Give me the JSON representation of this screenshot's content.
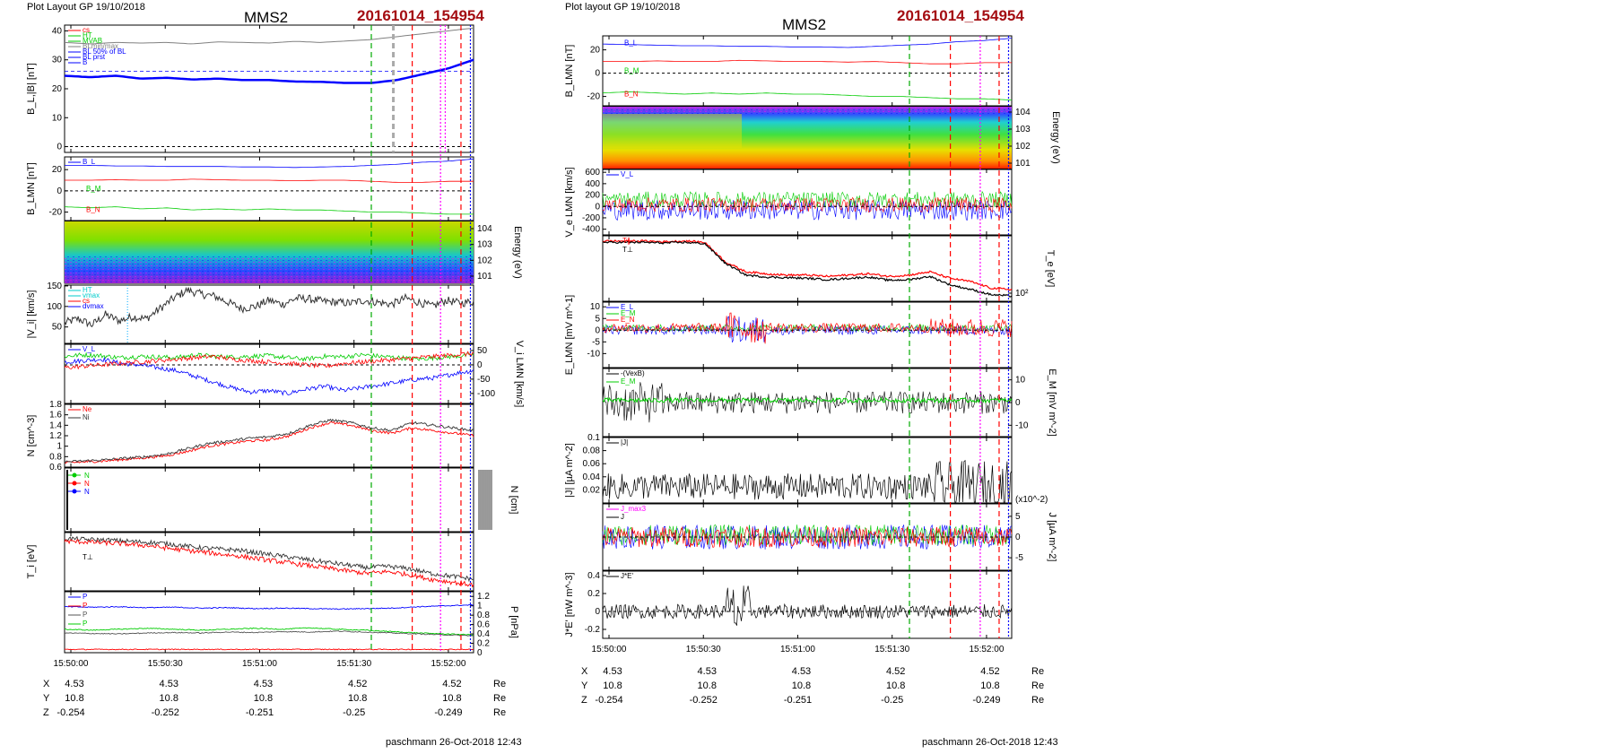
{
  "header": {
    "left_layout": "Plot Layout GP 19/10/2018",
    "right_layout": "Plot layout GP 19/10/2018",
    "spacecraft": "MMS2",
    "event": "20161014_154954"
  },
  "footer": {
    "left": "paschmann 26-Oct-2018 12:43",
    "right": "paschmann 26-Oct-2018 12:43"
  },
  "colors": {
    "blue": "#0000ff",
    "red": "#ff0000",
    "green": "#00cc00",
    "black": "#000000",
    "gray": "#808080",
    "magenta": "#ff00ff",
    "event_title": "#a40d12"
  },
  "time_axis": {
    "ticks": [
      "15:50:00",
      "15:50:30",
      "15:51:00",
      "15:51:30",
      "15:52:00"
    ],
    "tick_seconds": [
      0,
      30,
      60,
      90,
      120
    ],
    "range_seconds": [
      -2,
      128
    ]
  },
  "orbit": {
    "labels": [
      "X",
      "Y",
      "Z"
    ],
    "unit": "Re",
    "rows": [
      [
        "4.53",
        "4.53",
        "4.53",
        "4.52",
        "4.52"
      ],
      [
        "10.8",
        "10.8",
        "10.8",
        "10.8",
        "10.8"
      ],
      [
        "-0.254",
        "-0.252",
        "-0.251",
        "-0.25",
        "-0.249"
      ]
    ]
  },
  "chart_data": [
    {
      "type": "line",
      "id": "L1",
      "ylabel": "B_L,|B| [nT]",
      "ylim": [
        -2,
        42
      ],
      "yticks": [
        0,
        10,
        20,
        30,
        40
      ],
      "legend": [
        "cs",
        "HT",
        "MVAB",
        "BLmin/max",
        "BL 50% of BL",
        "BL prst",
        "B"
      ],
      "series": [
        {
          "name": "|B|",
          "color": "#808080",
          "values": [
            36,
            35.5,
            36,
            35.8,
            36,
            35.5,
            36.2,
            36,
            35.8,
            36.4,
            36,
            36.5,
            37,
            38,
            39,
            40,
            41
          ]
        },
        {
          "name": "B_L",
          "color": "#0000ff",
          "values": [
            24.5,
            24,
            24.5,
            23.5,
            23.8,
            23.2,
            23.5,
            23,
            23,
            22.5,
            22.4,
            22,
            22,
            23,
            25,
            27,
            30
          ]
        }
      ]
    },
    {
      "type": "line",
      "id": "L2",
      "ylabel": "B_LMN [nT]",
      "ylim": [
        -28,
        32
      ],
      "yticks": [
        -20,
        0,
        20
      ],
      "legend": [
        "B_L",
        "B_M",
        "B_N"
      ],
      "series": [
        {
          "name": "B_L",
          "color": "#0000ff",
          "values": [
            24,
            24,
            23.5,
            23.5,
            23,
            23,
            23,
            22.5,
            22.5,
            22,
            22.5,
            23,
            24,
            25,
            27,
            28,
            30
          ]
        },
        {
          "name": "B_M",
          "color": "#ff0000",
          "values": [
            10,
            10,
            10.5,
            10,
            10,
            11,
            10.5,
            10,
            10,
            9.5,
            10,
            10,
            9,
            8,
            8,
            9,
            9
          ]
        },
        {
          "name": "B_N",
          "color": "#00cc00",
          "values": [
            -15,
            -16,
            -15,
            -17,
            -16,
            -18,
            -17,
            -18,
            -17,
            -18,
            -18,
            -19,
            -20,
            -20,
            -21,
            -22,
            -22
          ]
        }
      ]
    },
    {
      "type": "heatmap",
      "id": "L3",
      "ylabel": "Energy (eV)",
      "yticks": [
        "10^4",
        "10^3",
        "10^2",
        "10^1"
      ]
    },
    {
      "type": "line",
      "id": "L4",
      "ylabel": "|V_i| [km/s]",
      "ylim": [
        10,
        152
      ],
      "yticks": [
        50,
        100,
        150
      ],
      "legend": [
        "HT",
        "vmax",
        "cs",
        "dvmax"
      ],
      "series": [
        {
          "name": "|V_i|",
          "color": "#333333",
          "values": [
            60,
            70,
            55,
            80,
            65,
            75,
            70,
            95,
            120,
            140,
            130,
            125,
            110,
            95,
            100,
            115,
            105,
            120,
            118,
            112,
            110,
            108,
            115,
            110,
            105,
            120,
            110,
            100,
            115,
            108,
            112
          ]
        }
      ]
    },
    {
      "type": "line",
      "id": "L5",
      "ylabel": "V_i LMN [km/s]",
      "ylim": [
        -135,
        72
      ],
      "yticks": [
        50,
        0,
        -50,
        -100
      ],
      "legend": [
        "V_L"
      ],
      "series": [
        {
          "name": "V_L",
          "color": "#0000ff",
          "values": [
            10,
            15,
            20,
            5,
            0,
            -10,
            -20,
            -40,
            -60,
            -80,
            -95,
            -90,
            -100,
            -85,
            -75,
            -90,
            -80,
            -70,
            -60,
            -50,
            -45,
            -30,
            -20
          ]
        },
        {
          "name": "V_M",
          "color": "#00cc00",
          "values": [
            30,
            35,
            32,
            25,
            30,
            28,
            25,
            35,
            30,
            28,
            30,
            32,
            25,
            20,
            30,
            28,
            35,
            30,
            25,
            20,
            25,
            30,
            35
          ]
        },
        {
          "name": "V_N",
          "color": "#ff0000",
          "values": [
            -10,
            -5,
            0,
            5,
            10,
            15,
            20,
            25,
            30,
            20,
            15,
            10,
            5,
            0,
            -5,
            5,
            10,
            15,
            20,
            25,
            30,
            35,
            40
          ]
        }
      ]
    },
    {
      "type": "line",
      "id": "L6",
      "ylabel": "N [cm^-3]",
      "ylim": [
        0.6,
        1.8
      ],
      "yticks": [
        0.6,
        0.8,
        1.0,
        1.2,
        1.4,
        1.6,
        1.8
      ],
      "legend": [
        "Ne",
        "Ni"
      ],
      "series": [
        {
          "name": "Ne",
          "color": "#ff0000",
          "values": [
            0.68,
            0.7,
            0.72,
            0.75,
            0.78,
            0.82,
            0.9,
            1.0,
            1.05,
            1.1,
            1.12,
            1.2,
            1.35,
            1.45,
            1.4,
            1.3,
            1.25,
            1.35,
            1.3,
            1.25,
            1.2
          ]
        },
        {
          "name": "Ni",
          "color": "#333333",
          "values": [
            0.7,
            0.72,
            0.74,
            0.77,
            0.8,
            0.85,
            0.95,
            1.05,
            1.1,
            1.15,
            1.18,
            1.25,
            1.4,
            1.5,
            1.45,
            1.35,
            1.3,
            1.45,
            1.4,
            1.35,
            1.3
          ]
        }
      ]
    },
    {
      "type": "scatter",
      "id": "L7",
      "ylabel": "N [cm]",
      "legend": [
        "N",
        "N",
        "N"
      ]
    },
    {
      "type": "line",
      "id": "L8",
      "ylabel": "T_i [eV]",
      "legend": [
        "T_perp"
      ],
      "series": [
        {
          "name": "T_par",
          "color": "#333333",
          "values": [
            0.9,
            0.88,
            0.87,
            0.85,
            0.83,
            0.8,
            0.75,
            0.72,
            0.7,
            0.65,
            0.6,
            0.55,
            0.5,
            0.45,
            0.4,
            0.42,
            0.38,
            0.3,
            0.25,
            0.2
          ]
        },
        {
          "name": "T_perp",
          "color": "#ff0000",
          "values": [
            0.85,
            0.84,
            0.82,
            0.8,
            0.77,
            0.72,
            0.68,
            0.64,
            0.6,
            0.55,
            0.5,
            0.45,
            0.4,
            0.35,
            0.3,
            0.33,
            0.28,
            0.2,
            0.15,
            0.1
          ]
        }
      ]
    },
    {
      "type": "line",
      "id": "L9",
      "ylabel": "P [nPa]",
      "ylim": [
        0,
        1.3
      ],
      "yticks": [
        0.0,
        0.2,
        0.4,
        0.6,
        0.8,
        1.0,
        1.2
      ],
      "legend": [
        "P",
        "P",
        "P",
        "P"
      ],
      "series": [
        {
          "name": "P_B",
          "color": "#0000ff",
          "values": [
            0.98,
            0.97,
            0.98,
            0.96,
            0.97,
            0.95,
            0.96,
            0.94,
            0.95,
            0.94,
            0.93,
            0.94,
            0.95,
            0.98,
            1.0,
            1.02
          ]
        },
        {
          "name": "P_e",
          "color": "#00cc00",
          "values": [
            0.5,
            0.48,
            0.5,
            0.52,
            0.5,
            0.48,
            0.5,
            0.52,
            0.5,
            0.53,
            0.5,
            0.48,
            0.45,
            0.42,
            0.4,
            0.38
          ]
        },
        {
          "name": "P_i",
          "color": "#555555",
          "values": [
            0.42,
            0.41,
            0.4,
            0.42,
            0.43,
            0.42,
            0.44,
            0.43,
            0.45,
            0.44,
            0.46,
            0.44,
            0.42,
            0.4,
            0.38,
            0.36
          ]
        },
        {
          "name": "P_tot",
          "color": "#ff0000",
          "values": [
            0.07,
            0.07,
            0.07,
            0.07,
            0.07,
            0.07,
            0.07,
            0.07,
            0.07,
            0.07,
            0.07,
            0.07,
            0.07,
            0.07,
            0.07,
            0.07
          ]
        }
      ]
    },
    {
      "type": "line",
      "id": "R1",
      "ylabel": "B_LMN [nT]",
      "ylim": [
        -28,
        32
      ],
      "yticks": [
        -20,
        0,
        20
      ],
      "legend": [
        "B_L",
        "B_M",
        "B_N"
      ],
      "series": [
        {
          "name": "B_L",
          "color": "#0000ff",
          "values": [
            25,
            24.5,
            24,
            23.5,
            23.5,
            23,
            23,
            22.5,
            22.5,
            22,
            23,
            24,
            25,
            27,
            28,
            30
          ]
        },
        {
          "name": "B_M",
          "color": "#ff0000",
          "values": [
            10,
            10,
            10.5,
            10,
            10,
            11,
            10.5,
            10,
            10,
            9.5,
            10,
            9,
            8,
            8,
            9,
            9
          ]
        },
        {
          "name": "B_N",
          "color": "#00cc00",
          "values": [
            -17,
            -16,
            -17,
            -18,
            -17,
            -18,
            -17,
            -18,
            -18,
            -19,
            -20,
            -20,
            -21,
            -22,
            -22,
            -23
          ]
        }
      ]
    },
    {
      "type": "heatmap",
      "id": "R2",
      "ylabel": "Energy (eV)",
      "yticks": [
        "10^4",
        "10^3",
        "10^2",
        "10^1"
      ]
    },
    {
      "type": "line",
      "id": "R3",
      "ylabel": "V_e LMN [km/s]",
      "ylim": [
        -500,
        650
      ],
      "yticks": [
        600,
        400,
        200,
        0,
        -200,
        -400
      ],
      "legend": [
        "V_L"
      ]
    },
    {
      "type": "line",
      "id": "R4",
      "ylabel": "T_e [eV]",
      "yticks": [
        "10^2"
      ],
      "legend": [
        "T_par",
        "T_perp"
      ],
      "series": [
        {
          "name": "T_par",
          "color": "#ff0000",
          "values": [
            0.92,
            0.92,
            0.92,
            0.91,
            0.92,
            0.9,
            0.6,
            0.45,
            0.42,
            0.4,
            0.4,
            0.38,
            0.4,
            0.42,
            0.38,
            0.4,
            0.45,
            0.35,
            0.3,
            0.2,
            0.18
          ]
        },
        {
          "name": "T_perp",
          "color": "#000000",
          "values": [
            0.9,
            0.9,
            0.9,
            0.89,
            0.9,
            0.88,
            0.58,
            0.4,
            0.37,
            0.36,
            0.35,
            0.33,
            0.35,
            0.37,
            0.32,
            0.33,
            0.38,
            0.25,
            0.18,
            0.1,
            0.08
          ]
        }
      ]
    },
    {
      "type": "line",
      "id": "R5",
      "ylabel": "E_LMN [mV m^-1]",
      "ylim": [
        -16,
        12
      ],
      "yticks": [
        10,
        5,
        0,
        -5,
        -10
      ],
      "legend": [
        "E_L",
        "E_M",
        "E_N"
      ]
    },
    {
      "type": "line",
      "id": "R6",
      "ylabel": "E_M [mV m^-2]",
      "ylim": [
        -15,
        15
      ],
      "yticks": [
        10,
        0,
        -10
      ],
      "legend": [
        "-(VexB)",
        "E_M"
      ]
    },
    {
      "type": "line",
      "id": "R7",
      "ylabel": "|J| [µA m^-2]",
      "ylim": [
        0,
        0.1
      ],
      "yticks": [
        0.02,
        0.04,
        0.06,
        0.08,
        0.1
      ],
      "legend": [
        "|J|"
      ]
    },
    {
      "type": "line",
      "id": "R8",
      "ylabel": "J [µA m^-2]",
      "ylim": [
        -8,
        8
      ],
      "yticks": [
        5,
        0,
        -5
      ],
      "scale_note": "(x10^-2)",
      "legend": [
        "J_max3",
        "J"
      ]
    },
    {
      "type": "line",
      "id": "R9",
      "ylabel": "J*E' [nW m^-3]",
      "ylim": [
        -0.3,
        0.45
      ],
      "yticks": [
        0.4,
        0.2,
        0.0,
        -0.2
      ],
      "legend": [
        "J*E'"
      ]
    }
  ]
}
